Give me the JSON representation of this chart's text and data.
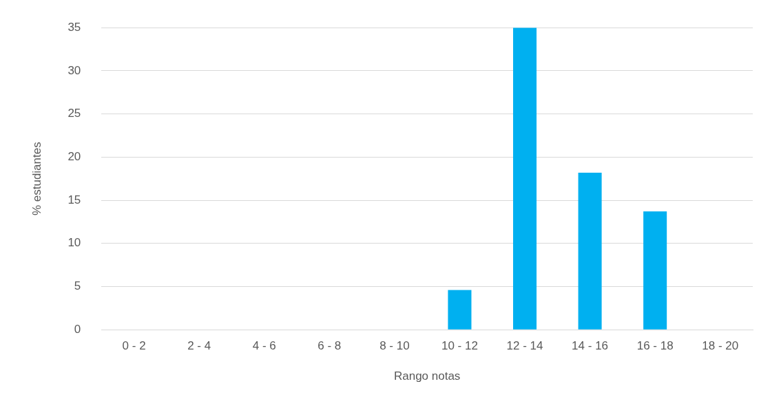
{
  "chart_data": {
    "type": "bar",
    "xlabel": "Rango notas",
    "ylabel": "% estudiantes",
    "categories": [
      "0 - 2",
      "2 - 4",
      "4 - 6",
      "6 - 8",
      "8 - 10",
      "10 - 12",
      "12 - 14",
      "14 - 16",
      "16 - 18",
      "18 - 20"
    ],
    "values": [
      0,
      0,
      0,
      0,
      0,
      4.6,
      35,
      18.2,
      13.7,
      0
    ],
    "color": "#00b0f0",
    "ylim": [
      0,
      35
    ],
    "yticks": [
      0,
      5,
      10,
      15,
      20,
      25,
      30,
      35
    ],
    "grid": "y",
    "legend": false
  }
}
